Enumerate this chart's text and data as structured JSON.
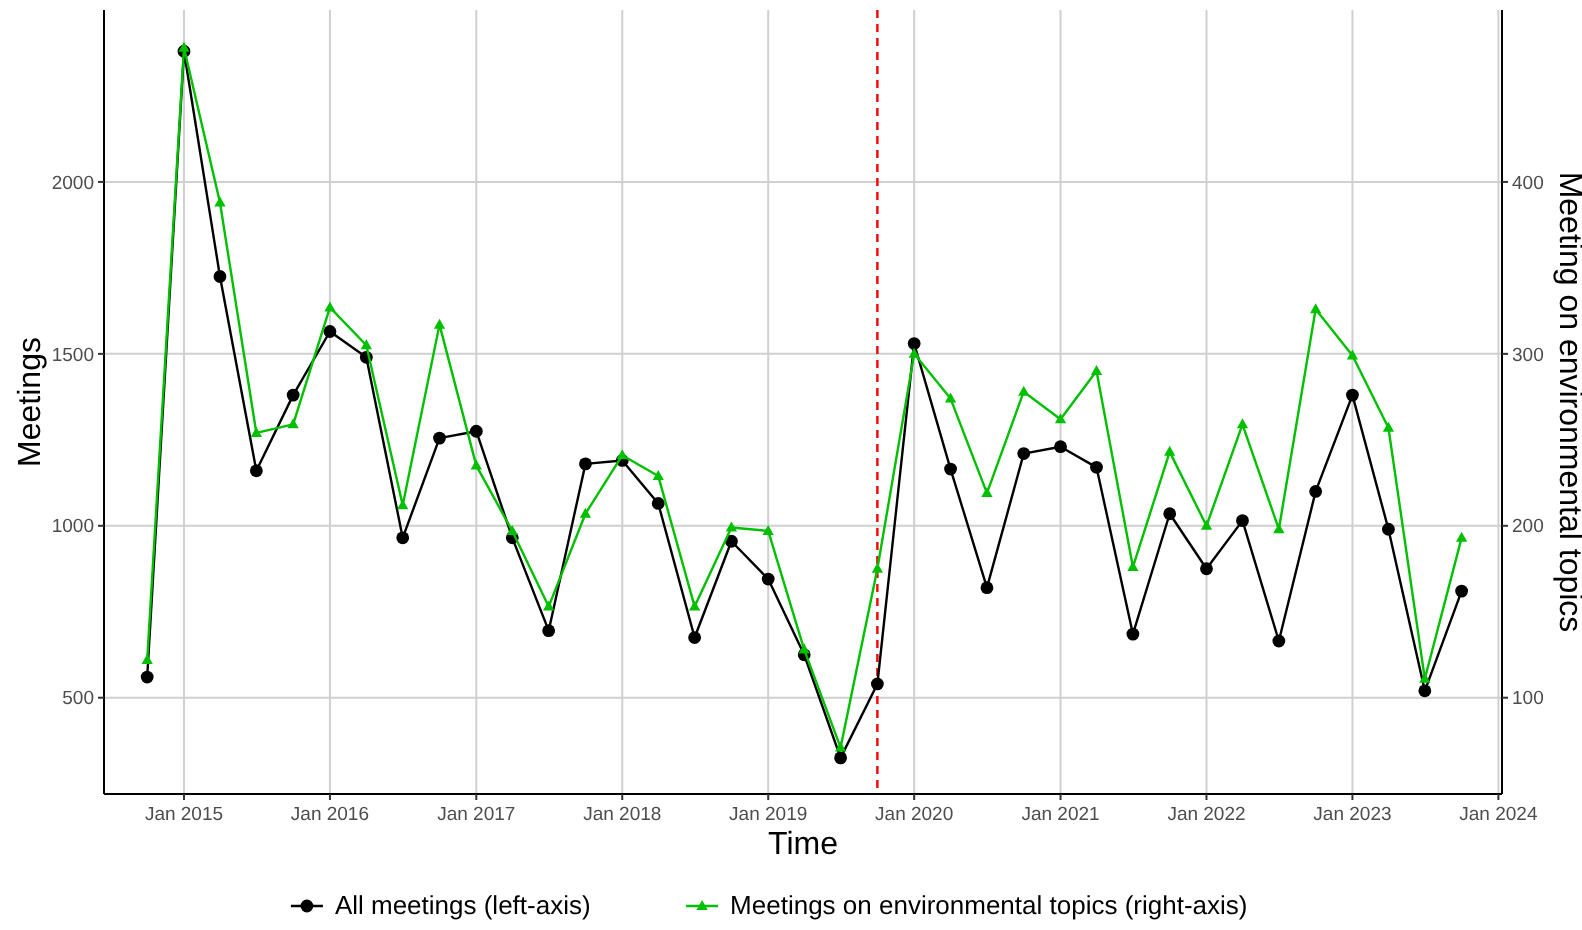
{
  "chart_data": {
    "type": "line",
    "xlabel": "Time",
    "ylabel": "Meetings",
    "y2label": "Meeting on environmental topics",
    "x": [
      "2014-10",
      "2015-01",
      "2015-04",
      "2015-07",
      "2015-10",
      "2016-01",
      "2016-04",
      "2016-07",
      "2016-10",
      "2017-01",
      "2017-04",
      "2017-07",
      "2017-10",
      "2018-01",
      "2018-04",
      "2018-07",
      "2018-10",
      "2019-01",
      "2019-04",
      "2019-07",
      "2019-10",
      "2020-01",
      "2020-04",
      "2020-07",
      "2020-10",
      "2021-01",
      "2021-04",
      "2021-07",
      "2021-10",
      "2022-01",
      "2022-04",
      "2022-07",
      "2022-10",
      "2023-01",
      "2023-04",
      "2023-07",
      "2023-10"
    ],
    "series": [
      {
        "name": "All meetings (left-axis)",
        "color": "#000000",
        "marker": "circle",
        "values": [
          560,
          2380,
          1725,
          1160,
          1380,
          1565,
          1490,
          965,
          1255,
          1275,
          965,
          695,
          1180,
          1190,
          1065,
          675,
          955,
          845,
          625,
          325,
          540,
          1530,
          1165,
          820,
          1210,
          1230,
          1170,
          685,
          1035,
          875,
          1015,
          665,
          1100,
          1380,
          990,
          520,
          810
        ]
      },
      {
        "name": "Meetings on environmental topics (right-axis)",
        "color": "#00c000",
        "marker": "triangle",
        "axis": "y2",
        "values": [
          122,
          478,
          388,
          254,
          259,
          327,
          305,
          212,
          317,
          235,
          197,
          153,
          207,
          241,
          229,
          153,
          199,
          197,
          128,
          71,
          175,
          300,
          274,
          219,
          278,
          262,
          290,
          176,
          243,
          200,
          259,
          198,
          326,
          299,
          257,
          111,
          193
        ]
      }
    ],
    "xlim": [
      "2014-06-15",
      "2024-01-10"
    ],
    "xticks": [
      {
        "value": "2015-01",
        "label": "Jan 2015"
      },
      {
        "value": "2016-01",
        "label": "Jan 2016"
      },
      {
        "value": "2017-01",
        "label": "Jan 2017"
      },
      {
        "value": "2018-01",
        "label": "Jan 2018"
      },
      {
        "value": "2019-01",
        "label": "Jan 2019"
      },
      {
        "value": "2020-01",
        "label": "Jan 2020"
      },
      {
        "value": "2021-01",
        "label": "Jan 2021"
      },
      {
        "value": "2022-01",
        "label": "Jan 2022"
      },
      {
        "value": "2023-01",
        "label": "Jan 2023"
      },
      {
        "value": "2024-01",
        "label": "Jan 2024"
      }
    ],
    "ylim": [
      220,
      2500
    ],
    "yticks": [
      500,
      1000,
      1500,
      2000
    ],
    "y2lim": [
      44,
      500
    ],
    "y2ticks": [
      100,
      200,
      300,
      400
    ],
    "ref_lines": [
      {
        "axis": "x",
        "value": "2019-10-01",
        "color": "#ff0000",
        "line_style": "dashed"
      }
    ],
    "grid": true,
    "legend": "bottom",
    "line_style": "solid"
  }
}
